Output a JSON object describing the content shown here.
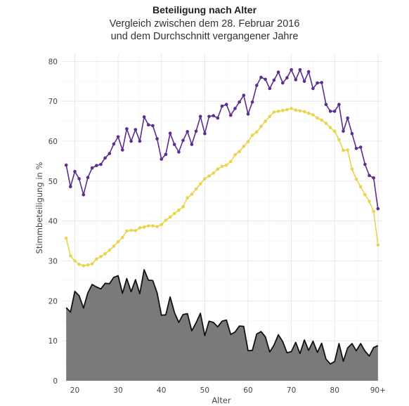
{
  "chart_data": {
    "type": "line",
    "title": "Beteiligung nach Alter",
    "subtitle_lines": [
      "Vergleich zwischen dem 28. Februar 2016",
      "und dem Durchschnitt vergangener Jahre"
    ],
    "xlabel": "Alter",
    "ylabel": "Stimmbeteiligung in %",
    "xlim": [
      17,
      91
    ],
    "ylim": [
      0,
      82
    ],
    "x_ticks": [
      20,
      30,
      40,
      50,
      60,
      70,
      80,
      90
    ],
    "x_tick_labels": [
      "20",
      "30",
      "40",
      "50",
      "60",
      "70",
      "80",
      "90+"
    ],
    "y_ticks": [
      0,
      10,
      20,
      30,
      40,
      50,
      60,
      70,
      80
    ],
    "y_tick_labels": [
      "0",
      "10",
      "20",
      "30",
      "40",
      "50",
      "60",
      "70",
      "80"
    ],
    "grid": true,
    "x": [
      18,
      19,
      20,
      21,
      22,
      23,
      24,
      25,
      26,
      27,
      28,
      29,
      30,
      31,
      32,
      33,
      34,
      35,
      36,
      37,
      38,
      39,
      40,
      41,
      42,
      43,
      44,
      45,
      46,
      47,
      48,
      49,
      50,
      51,
      52,
      53,
      54,
      55,
      56,
      57,
      58,
      59,
      60,
      61,
      62,
      63,
      64,
      65,
      66,
      67,
      68,
      69,
      70,
      71,
      72,
      73,
      74,
      75,
      76,
      77,
      78,
      79,
      80,
      81,
      82,
      83,
      84,
      85,
      86,
      87,
      88,
      89,
      90
    ],
    "series": [
      {
        "color": "#5b2d8e",
        "markers": true,
        "values": [
          54.0,
          48.6,
          52.4,
          50.6,
          46.6,
          50.9,
          53.3,
          53.9,
          54.2,
          55.8,
          56.9,
          59.3,
          61.1,
          57.8,
          63.1,
          60.0,
          62.9,
          60.0,
          66.1,
          64.1,
          63.9,
          60.6,
          55.5,
          56.7,
          62.0,
          59.2,
          57.3,
          60.2,
          62.4,
          59.2,
          62.5,
          66.2,
          61.9,
          66.2,
          66.4,
          65.8,
          68.8,
          69.2,
          66.5,
          68.2,
          69.8,
          71.5,
          66.8,
          69.8,
          74.0,
          76.0,
          75.5,
          73.2,
          75.3,
          77.3,
          74.6,
          75.9,
          77.9,
          75.4,
          77.9,
          75.0,
          77.4,
          73.2,
          74.6,
          74.7,
          69.2,
          67.5,
          67.5,
          69.2,
          62.5,
          65.8,
          61.9,
          58.2,
          58.5,
          54.2,
          51.4,
          50.8,
          43.1
        ]
      },
      {
        "color": "#e8d44d",
        "markers": true,
        "values": [
          35.7,
          31.3,
          30.0,
          29.2,
          28.8,
          29.0,
          29.3,
          30.5,
          31.1,
          31.8,
          32.7,
          33.7,
          34.8,
          35.9,
          37.5,
          37.7,
          37.6,
          38.3,
          38.5,
          38.8,
          38.8,
          38.6,
          39.1,
          40.2,
          41.0,
          41.9,
          42.7,
          43.6,
          45.8,
          46.7,
          48.0,
          49.3,
          50.6,
          51.3,
          52.0,
          53.0,
          53.7,
          54.0,
          54.9,
          56.6,
          57.4,
          58.7,
          59.9,
          61.5,
          62.3,
          63.7,
          65.0,
          66.2,
          67.3,
          67.5,
          67.7,
          67.9,
          68.2,
          67.8,
          67.6,
          67.4,
          67.0,
          66.6,
          65.8,
          65.3,
          64.5,
          63.4,
          62.5,
          60.4,
          57.7,
          57.8,
          53.0,
          50.5,
          48.6,
          46.6,
          44.9,
          42.4,
          34.0
        ]
      },
      {
        "color": "#111111",
        "fill": "#7a7a7a",
        "markers": false,
        "values": [
          18.3,
          17.2,
          22.4,
          21.3,
          18.2,
          22.0,
          24.1,
          23.5,
          23.0,
          24.4,
          24.3,
          25.9,
          26.3,
          21.9,
          25.6,
          22.3,
          25.3,
          21.8,
          27.8,
          25.2,
          25.1,
          22.0,
          16.4,
          16.5,
          21.0,
          17.1,
          14.6,
          16.6,
          16.8,
          12.5,
          14.5,
          16.9,
          11.3,
          14.9,
          14.6,
          13.5,
          14.9,
          15.2,
          11.6,
          12.2,
          13.7,
          13.6,
          7.5,
          7.6,
          11.7,
          12.3,
          11.0,
          7.2,
          8.9,
          11.5,
          9.8,
          7.0,
          7.3,
          9.6,
          6.8,
          10.2,
          7.6,
          9.9,
          7.1,
          9.4,
          5.4,
          4.2,
          4.8,
          9.3,
          4.9,
          8.2,
          9.3,
          7.5,
          9.3,
          7.4,
          6.2,
          8.3,
          8.8
        ]
      }
    ]
  }
}
